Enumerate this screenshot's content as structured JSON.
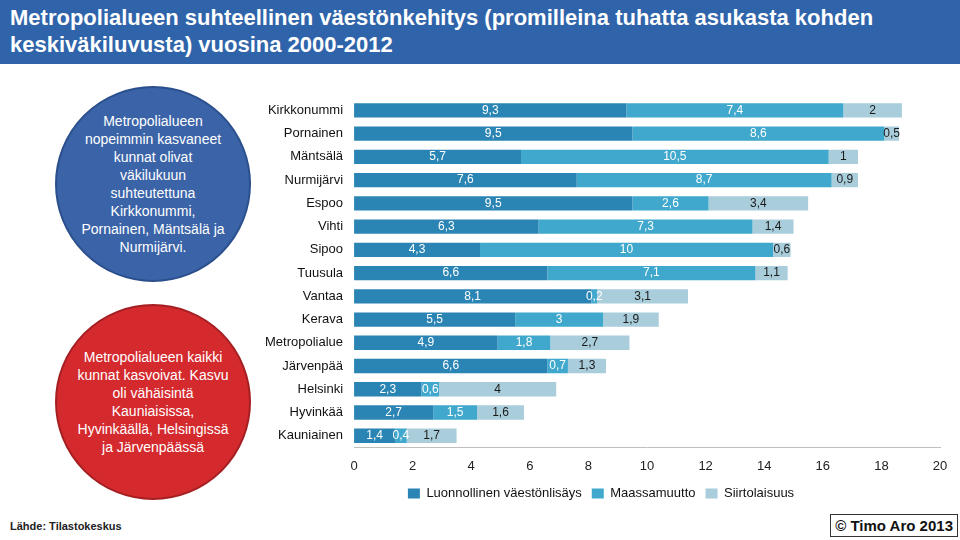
{
  "chart_data": {
    "type": "bar",
    "title": "Metropolialueen suhteellinen väestönkehitys (promilleina tuhatta asukasta kohden keskiväkiluvusta) vuosina 2000-2012",
    "orientation": "horizontal",
    "stacked": true,
    "grid": false,
    "legend": "bottom",
    "data_labels": true,
    "categories": [
      "Kirkkonummi",
      "Pornainen",
      "Mäntsälä",
      "Nurmijärvi",
      "Espoo",
      "Vihti",
      "Sipoo",
      "Tuusula",
      "Vantaa",
      "Kerava",
      "Metropolialue",
      "Järvenpää",
      "Helsinki",
      "Hyvinkää",
      "Kauniainen"
    ],
    "series": [
      {
        "name": "Luonnollinen väestönlisäys",
        "color": "#2a84b4",
        "values": [
          9.3,
          9.5,
          5.7,
          7.6,
          9.5,
          6.3,
          4.3,
          6.6,
          8.1,
          5.5,
          4.9,
          6.6,
          2.3,
          2.7,
          1.4
        ],
        "value_labels": [
          "9,3",
          "9,5",
          "5,7",
          "7,6",
          "9,5",
          "6,3",
          "4,3",
          "6,6",
          "8,1",
          "5,5",
          "4,9",
          "6,6",
          "2,3",
          "2,7",
          "1,4"
        ]
      },
      {
        "name": "Maassamuutto",
        "color": "#3fa8cc",
        "values": [
          7.4,
          8.6,
          10.5,
          8.7,
          2.6,
          7.3,
          10,
          7.1,
          0.2,
          3,
          1.8,
          0.7,
          0.6,
          1.5,
          0.4
        ],
        "value_labels": [
          "7,4",
          "8,6",
          "10,5",
          "8,7",
          "2,6",
          "7,3",
          "10",
          "7,1",
          "0,2",
          "3",
          "1,8",
          "0,7",
          "0,6",
          "1,5",
          "0,4"
        ]
      },
      {
        "name": "Siirtolaisuus",
        "color": "#a9cddb",
        "values": [
          2,
          0.5,
          1,
          0.9,
          3.4,
          1.4,
          0.6,
          1.1,
          3.1,
          1.9,
          2.7,
          1.3,
          4,
          1.6,
          1.7
        ],
        "value_labels": [
          "2",
          "0,5",
          "1",
          "0,9",
          "3,4",
          "1,4",
          "0,6",
          "1,1",
          "3,1",
          "1,9",
          "2,7",
          "1,3",
          "4",
          "1,6",
          "1,7"
        ]
      }
    ],
    "xlim": [
      0,
      20
    ],
    "xticks": [
      0,
      2,
      4,
      6,
      8,
      10,
      12,
      14,
      16,
      18,
      20
    ],
    "annotations": [
      "Metropolialueen nopeimmin kasvaneet kunnat olivat väkilukuun suhteutettuna Kirkkonummi, Pornainen, Mäntsälä ja Nurmijärvi.",
      "Metropolialueen kaikki kunnat kasvoivat. Kasvu oli vähäisintä Kauniaisissa, Hyvinkäällä, Helsingissä ja Järvenpäässä"
    ],
    "source": "Lähde: Tilastokeskus",
    "credit": "© Timo Aro 2013"
  }
}
